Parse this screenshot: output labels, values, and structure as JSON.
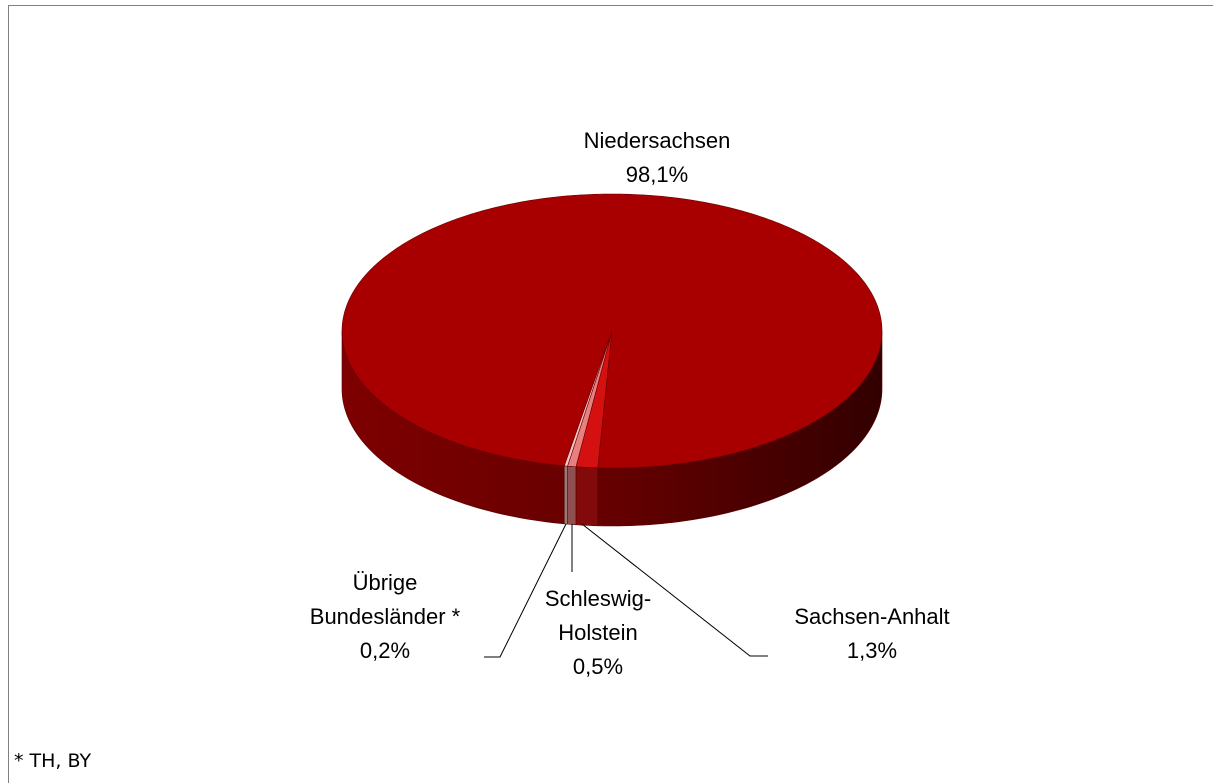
{
  "chart_data": {
    "type": "pie",
    "categories": [
      "Niedersachsen",
      "Sachsen-Anhalt",
      "Schleswig-Holstein",
      "Übrige Bundesländer *"
    ],
    "values": [
      98.1,
      1.3,
      0.5,
      0.2
    ],
    "value_labels": [
      "98,1%",
      "1,3%",
      "0,5%",
      "0,2%"
    ],
    "colors": [
      "#a80000",
      "#d41010",
      "#e98080",
      "#f6c4c4"
    ],
    "footnote": "* TH, BY"
  }
}
